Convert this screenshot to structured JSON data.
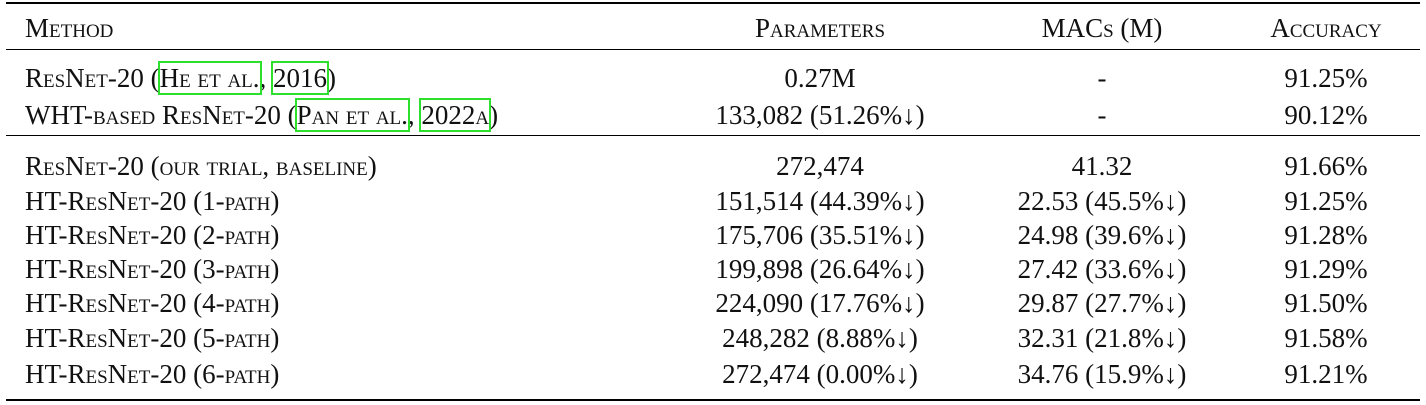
{
  "table": {
    "header": [
      "Method",
      "Parameters",
      "MACs (M)",
      "Accuracy"
    ],
    "groups": [
      [
        {
          "method": [
            {
              "text": "ResNet-20 ("
            },
            {
              "text": "He et al.",
              "link": true
            },
            {
              "text": ", "
            },
            {
              "text": "2016",
              "link": true
            },
            {
              "text": ")"
            }
          ],
          "parameters": "0.27M",
          "macs": "-",
          "accuracy": "91.25%"
        },
        {
          "method": [
            {
              "text": "WHT-based ResNet-20 ("
            },
            {
              "text": "Pan et al.",
              "link": true
            },
            {
              "text": ", "
            },
            {
              "text": "2022a",
              "link": true
            },
            {
              "text": ")"
            }
          ],
          "parameters": "133,082 (51.26%↓)",
          "macs": "-",
          "accuracy": "90.12%"
        }
      ],
      [
        {
          "method": [
            {
              "text": "ResNet-20 (our trial, baseline)"
            }
          ],
          "parameters": "272,474",
          "macs": "41.32",
          "accuracy": "91.66%"
        },
        {
          "method": [
            {
              "text": "HT-ResNet-20 (1-path)"
            }
          ],
          "parameters": "151,514 (44.39%↓)",
          "macs": "22.53 (45.5%↓)",
          "accuracy": "91.25%"
        },
        {
          "method": [
            {
              "text": "HT-ResNet-20 (2-path)"
            }
          ],
          "parameters": "175,706 (35.51%↓)",
          "macs": "24.98 (39.6%↓)",
          "accuracy": "91.28%"
        },
        {
          "method": [
            {
              "text": "HT-ResNet-20 (3-path)"
            }
          ],
          "parameters": "199,898 (26.64%↓)",
          "macs": "27.42 (33.6%↓)",
          "accuracy": "91.29%"
        },
        {
          "method": [
            {
              "text": "HT-ResNet-20 (4-path)"
            }
          ],
          "parameters": "224,090 (17.76%↓)",
          "macs": "29.87 (27.7%↓)",
          "accuracy": "91.50%"
        },
        {
          "method": [
            {
              "text": "HT-ResNet-20 (5-path)"
            }
          ],
          "parameters": "248,282 (8.88%↓)",
          "macs": "32.31 (21.8%↓)",
          "accuracy": "91.58%"
        },
        {
          "method": [
            {
              "text": "HT-ResNet-20 (6-path)"
            }
          ],
          "parameters": "272,474 (0.00%↓)",
          "macs": "34.76 (15.9%↓)",
          "accuracy": "91.21%"
        }
      ]
    ]
  }
}
